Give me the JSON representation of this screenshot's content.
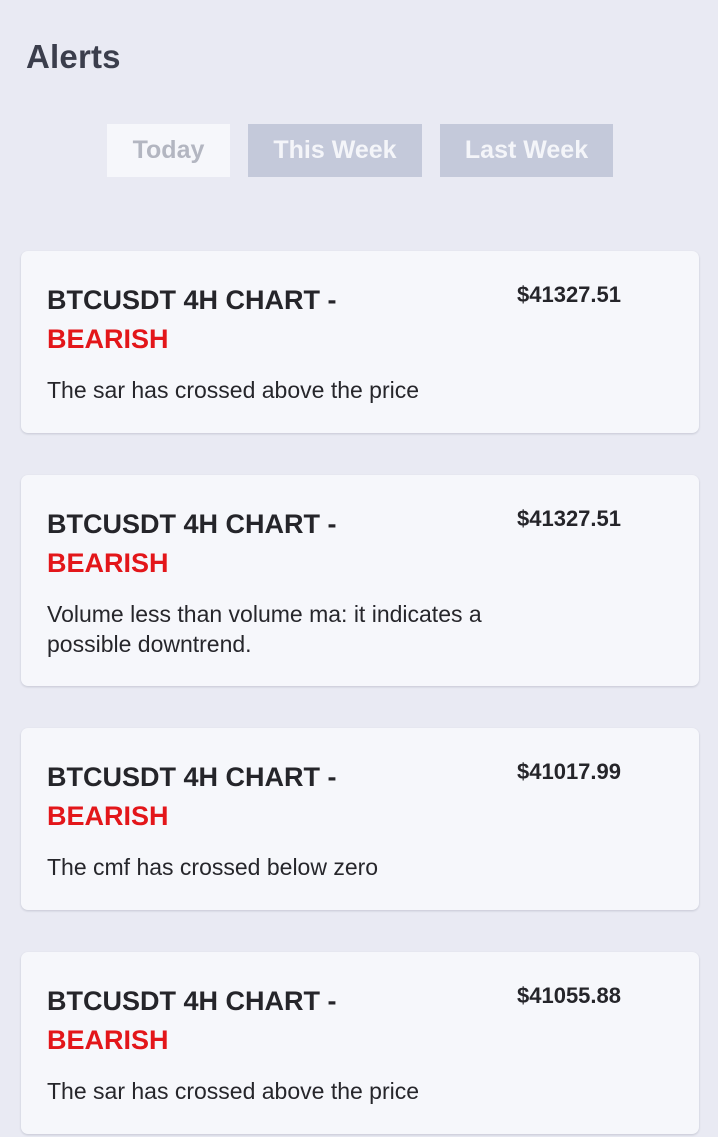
{
  "header": {
    "title": "Alerts"
  },
  "tabs": [
    {
      "label": "Today",
      "selected": true
    },
    {
      "label": "This Week",
      "selected": false
    },
    {
      "label": "Last Week",
      "selected": false
    }
  ],
  "colors": {
    "background": "#e9eaf3",
    "card": "#f6f7fb",
    "bearish": "#e3161a",
    "tab_inactive": "#c4c9da"
  },
  "alerts": [
    {
      "title": "BTCUSDT 4H CHART -",
      "sentiment": "BEARISH",
      "price": "$41327.51",
      "message": "The sar has crossed above the price"
    },
    {
      "title": "BTCUSDT 4H CHART -",
      "sentiment": "BEARISH",
      "price": "$41327.51",
      "message": "Volume less than volume ma: it indicates a possible downtrend."
    },
    {
      "title": "BTCUSDT 4H CHART -",
      "sentiment": "BEARISH",
      "price": "$41017.99",
      "message": "The cmf has crossed below zero"
    },
    {
      "title": "BTCUSDT 4H CHART -",
      "sentiment": "BEARISH",
      "price": "$41055.88",
      "message": "The sar has crossed above the price"
    }
  ]
}
